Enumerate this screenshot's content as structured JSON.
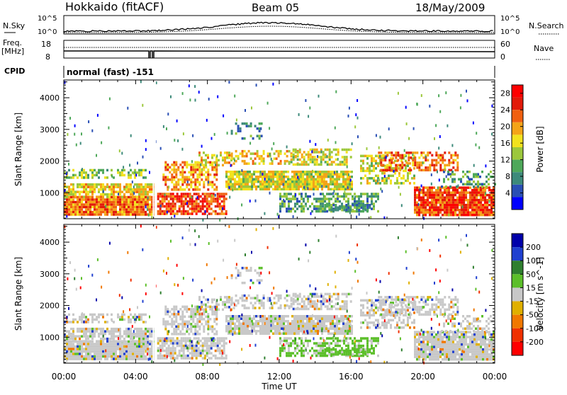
{
  "header": {
    "station": "Hokkaido (fitACF)",
    "beam": "Beam 05",
    "date": "18/May/2009"
  },
  "top_panel": {
    "nsky_label": "N.Sky",
    "nsearch_label": "N.Search",
    "tick_high": "10^5",
    "tick_low": "10^0",
    "freq_label": "Freq.",
    "mhz_label": "[MHz]",
    "freq_ticks": [
      "18",
      "8"
    ],
    "nave_label": "Nave",
    "nave_ticks": [
      "60",
      "0"
    ],
    "cpid_label": "CPID",
    "cpid_value": "normal (fast) -151"
  },
  "colors": {
    "power": [
      "#0000ff",
      "#2a4fb5",
      "#3d8a7a",
      "#4ea85a",
      "#9cc83c",
      "#f2e21e",
      "#f4a418",
      "#f06010",
      "#e21a0a",
      "#ff0000"
    ],
    "velocity": [
      "#0000aa",
      "#2040d0",
      "#2f7f2f",
      "#5cbf2a",
      "#c8c8c8",
      "#e0b000",
      "#f07800",
      "#f03000",
      "#ff0000"
    ]
  },
  "chart_data": [
    {
      "type": "heatmap",
      "name": "power",
      "ylabel": "Slant Range [km]",
      "y_ticks": [
        1000,
        2000,
        3000,
        4000
      ],
      "ylim": [
        180,
        4560
      ],
      "x_ticks": [
        "00:00",
        "04:00",
        "08:00",
        "12:00",
        "16:00",
        "20:00",
        "00:00"
      ],
      "xlim_hours": [
        0,
        24
      ],
      "colorbar": {
        "label": "Power [dB]",
        "ticks": [
          "4",
          "8",
          "12",
          "16",
          "20",
          "24",
          "28"
        ],
        "range": [
          0,
          30
        ]
      }
    },
    {
      "type": "heatmap",
      "name": "velocity",
      "ylabel": "Slant Range [km]",
      "xlabel": "Time UT",
      "y_ticks": [
        1000,
        2000,
        3000,
        4000
      ],
      "ylim": [
        180,
        4560
      ],
      "x_ticks": [
        "00:00",
        "04:00",
        "08:00",
        "12:00",
        "16:00",
        "20:00",
        "00:00"
      ],
      "xlim_hours": [
        0,
        24
      ],
      "colorbar": {
        "label": "Velocity [m s^-1]",
        "ticks": [
          "200",
          "100",
          "50",
          "15",
          "-15",
          "-50",
          "-100",
          "-200"
        ]
      }
    }
  ]
}
